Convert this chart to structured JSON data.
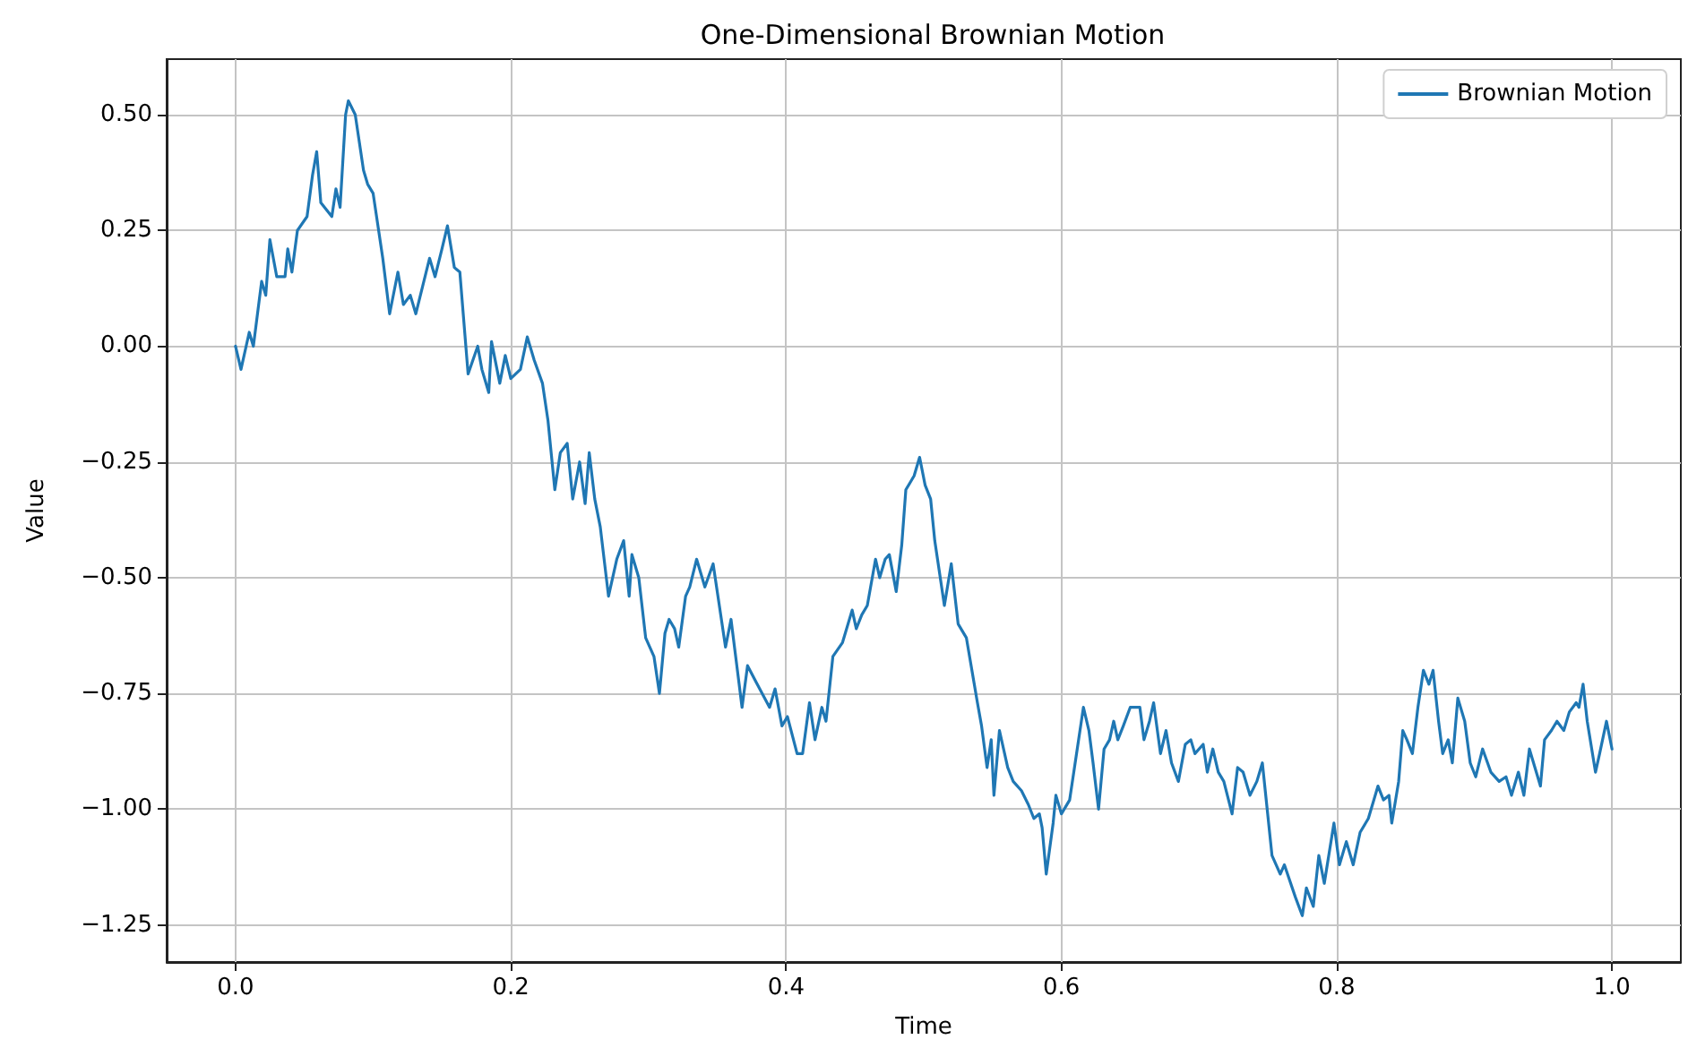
{
  "chart_data": {
    "type": "line",
    "title": "One-Dimensional Brownian Motion",
    "xlabel": "Time",
    "ylabel": "Value",
    "xlim": [
      -0.05,
      1.05
    ],
    "ylim": [
      -1.33,
      0.62
    ],
    "xticks": [
      {
        "value": 0,
        "label": "0.0"
      },
      {
        "value": 0.2,
        "label": "0.2"
      },
      {
        "value": 0.4,
        "label": "0.4"
      },
      {
        "value": 0.6,
        "label": "0.6"
      },
      {
        "value": 0.8,
        "label": "0.8"
      },
      {
        "value": 1,
        "label": "1.0"
      }
    ],
    "yticks": [
      {
        "value": -1.25,
        "label": "−1.25"
      },
      {
        "value": -1,
        "label": "−1.00"
      },
      {
        "value": -0.75,
        "label": "−0.75"
      },
      {
        "value": -0.5,
        "label": "−0.50"
      },
      {
        "value": -0.25,
        "label": "−0.25"
      },
      {
        "value": 0,
        "label": "0.00"
      },
      {
        "value": 0.25,
        "label": "0.25"
      },
      {
        "value": 0.5,
        "label": "0.50"
      }
    ],
    "grid": true,
    "legend": "top right",
    "series": [
      {
        "name": "Brownian Motion",
        "color": "#1f77b4",
        "x": [
          0.0,
          0.004,
          0.01,
          0.013,
          0.019,
          0.022,
          0.025,
          0.03,
          0.036,
          0.038,
          0.041,
          0.045,
          0.052,
          0.056,
          0.059,
          0.062,
          0.07,
          0.073,
          0.076,
          0.08,
          0.082,
          0.087,
          0.093,
          0.096,
          0.1,
          0.107,
          0.112,
          0.118,
          0.122,
          0.127,
          0.131,
          0.136,
          0.141,
          0.145,
          0.15,
          0.154,
          0.159,
          0.163,
          0.169,
          0.176,
          0.179,
          0.184,
          0.186,
          0.192,
          0.196,
          0.2,
          0.207,
          0.212,
          0.217,
          0.223,
          0.227,
          0.232,
          0.236,
          0.241,
          0.245,
          0.25,
          0.254,
          0.257,
          0.261,
          0.265,
          0.271,
          0.277,
          0.282,
          0.286,
          0.288,
          0.293,
          0.298,
          0.304,
          0.308,
          0.312,
          0.315,
          0.319,
          0.322,
          0.327,
          0.33,
          0.335,
          0.341,
          0.347,
          0.356,
          0.36,
          0.368,
          0.372,
          0.379,
          0.388,
          0.392,
          0.397,
          0.401,
          0.408,
          0.412,
          0.417,
          0.421,
          0.426,
          0.429,
          0.434,
          0.441,
          0.448,
          0.451,
          0.455,
          0.459,
          0.465,
          0.468,
          0.472,
          0.475,
          0.48,
          0.484,
          0.487,
          0.493,
          0.497,
          0.501,
          0.505,
          0.508,
          0.515,
          0.52,
          0.525,
          0.531,
          0.539,
          0.542,
          0.546,
          0.549,
          0.551,
          0.555,
          0.561,
          0.565,
          0.571,
          0.576,
          0.58,
          0.584,
          0.586,
          0.589,
          0.594,
          0.596,
          0.6,
          0.606,
          0.61,
          0.616,
          0.62,
          0.623,
          0.627,
          0.631,
          0.635,
          0.638,
          0.641,
          0.645,
          0.65,
          0.657,
          0.66,
          0.664,
          0.667,
          0.672,
          0.676,
          0.68,
          0.685,
          0.69,
          0.694,
          0.697,
          0.703,
          0.706,
          0.71,
          0.714,
          0.718,
          0.724,
          0.728,
          0.732,
          0.737,
          0.742,
          0.746,
          0.753,
          0.759,
          0.762,
          0.77,
          0.775,
          0.778,
          0.783,
          0.787,
          0.791,
          0.798,
          0.802,
          0.807,
          0.812,
          0.817,
          0.823,
          0.83,
          0.834,
          0.838,
          0.84,
          0.845,
          0.848,
          0.851,
          0.855,
          0.859,
          0.863,
          0.867,
          0.87,
          0.874,
          0.877,
          0.881,
          0.884,
          0.888,
          0.893,
          0.897,
          0.901,
          0.906,
          0.912,
          0.918,
          0.923,
          0.927,
          0.932,
          0.936,
          0.94,
          0.945,
          0.948,
          0.951,
          0.956,
          0.96,
          0.965,
          0.969,
          0.974,
          0.976,
          0.979,
          0.982,
          0.988,
          0.991,
          0.996,
          1.0
        ],
        "values": [
          0.0,
          -0.05,
          0.03,
          0.0,
          0.14,
          0.11,
          0.23,
          0.15,
          0.15,
          0.21,
          0.16,
          0.25,
          0.28,
          0.37,
          0.42,
          0.31,
          0.28,
          0.34,
          0.3,
          0.5,
          0.53,
          0.5,
          0.38,
          0.35,
          0.33,
          0.19,
          0.07,
          0.16,
          0.09,
          0.11,
          0.07,
          0.13,
          0.19,
          0.15,
          0.21,
          0.26,
          0.17,
          0.16,
          -0.06,
          0.0,
          -0.05,
          -0.1,
          0.01,
          -0.08,
          -0.02,
          -0.07,
          -0.05,
          0.02,
          -0.03,
          -0.08,
          -0.16,
          -0.31,
          -0.23,
          -0.21,
          -0.33,
          -0.25,
          -0.34,
          -0.23,
          -0.33,
          -0.39,
          -0.54,
          -0.46,
          -0.42,
          -0.54,
          -0.45,
          -0.5,
          -0.63,
          -0.67,
          -0.75,
          -0.62,
          -0.59,
          -0.61,
          -0.65,
          -0.54,
          -0.52,
          -0.46,
          -0.52,
          -0.47,
          -0.65,
          -0.59,
          -0.78,
          -0.69,
          -0.73,
          -0.78,
          -0.74,
          -0.82,
          -0.8,
          -0.88,
          -0.88,
          -0.77,
          -0.85,
          -0.78,
          -0.81,
          -0.67,
          -0.64,
          -0.57,
          -0.61,
          -0.58,
          -0.56,
          -0.46,
          -0.5,
          -0.46,
          -0.45,
          -0.53,
          -0.43,
          -0.31,
          -0.28,
          -0.24,
          -0.3,
          -0.33,
          -0.42,
          -0.56,
          -0.47,
          -0.6,
          -0.63,
          -0.77,
          -0.82,
          -0.91,
          -0.85,
          -0.97,
          -0.83,
          -0.91,
          -0.94,
          -0.96,
          -0.99,
          -1.02,
          -1.01,
          -1.04,
          -1.14,
          -1.03,
          -0.97,
          -1.01,
          -0.98,
          -0.9,
          -0.78,
          -0.83,
          -0.9,
          -1.0,
          -0.87,
          -0.85,
          -0.81,
          -0.85,
          -0.82,
          -0.78,
          -0.78,
          -0.85,
          -0.81,
          -0.77,
          -0.88,
          -0.83,
          -0.9,
          -0.94,
          -0.86,
          -0.85,
          -0.88,
          -0.86,
          -0.92,
          -0.87,
          -0.92,
          -0.94,
          -1.01,
          -0.91,
          -0.92,
          -0.97,
          -0.94,
          -0.9,
          -1.1,
          -1.14,
          -1.12,
          -1.19,
          -1.23,
          -1.17,
          -1.21,
          -1.1,
          -1.16,
          -1.03,
          -1.12,
          -1.07,
          -1.12,
          -1.05,
          -1.02,
          -0.95,
          -0.98,
          -0.97,
          -1.03,
          -0.94,
          -0.83,
          -0.85,
          -0.88,
          -0.78,
          -0.7,
          -0.73,
          -0.7,
          -0.81,
          -0.88,
          -0.85,
          -0.9,
          -0.76,
          -0.81,
          -0.9,
          -0.93,
          -0.87,
          -0.92,
          -0.94,
          -0.93,
          -0.97,
          -0.92,
          -0.97,
          -0.87,
          -0.92,
          -0.95,
          -0.85,
          -0.83,
          -0.81,
          -0.83,
          -0.79,
          -0.77,
          -0.78,
          -0.73,
          -0.81,
          -0.92,
          -0.88,
          -0.81,
          -0.87
        ]
      }
    ]
  }
}
